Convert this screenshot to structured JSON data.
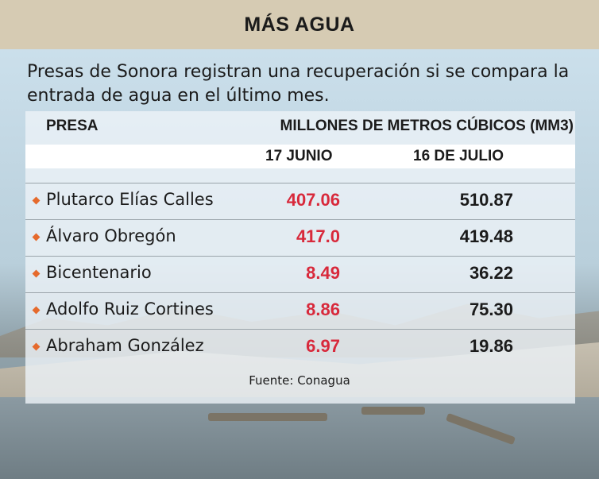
{
  "header": {
    "title": "MÁS AGUA"
  },
  "subtitle": "Presas de Sonora registran una recuperación si se compara la entrada de agua en el último mes.",
  "chart_data": {
    "type": "table",
    "columns": {
      "presa": "PRESA",
      "units": "MILLONES DE METROS CÚBICOS (MM3)",
      "date_1": "17 JUNIO",
      "date_2": "16 DE JULIO"
    },
    "rows": [
      {
        "presa": "Plutarco Elías Calles",
        "v1": "407.06",
        "v2": "510.87"
      },
      {
        "presa": "Álvaro Obregón",
        "v1": "417.0",
        "v2": "419.48"
      },
      {
        "presa": "Bicentenario",
        "v1": "8.49",
        "v2": "36.22"
      },
      {
        "presa": "Adolfo Ruiz Cortines",
        "v1": "8.86",
        "v2": "75.30"
      },
      {
        "presa": "Abraham González",
        "v1": "6.97",
        "v2": "19.86"
      }
    ],
    "source": "Fuente: Conagua"
  },
  "colors": {
    "header_bg": "#d6cbb3",
    "bullet": "#e56a2c",
    "value_june": "#d8293b",
    "value_july": "#1b1b1b"
  }
}
